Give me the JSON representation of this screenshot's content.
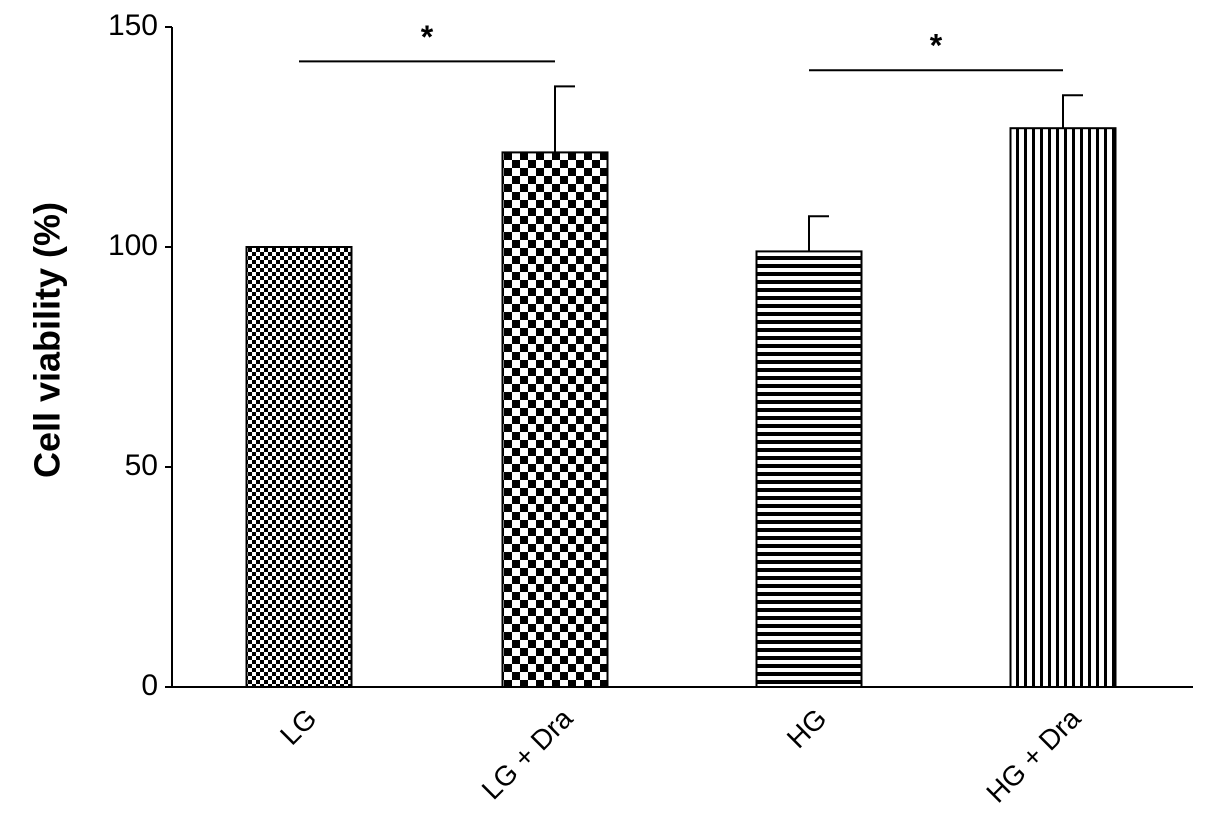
{
  "chart_data": {
    "type": "bar",
    "y_label": "Cell viability (%)",
    "categories": [
      "LG",
      "LG + Dra",
      "HG",
      "HG + Dra"
    ],
    "values": [
      100,
      121.5,
      99,
      127
    ],
    "errors": [
      0,
      15,
      8,
      7.5
    ],
    "patterns": [
      "fine-checker",
      "checker",
      "horizontal",
      "vertical"
    ],
    "color": "#000000",
    "ylim": [
      0,
      150
    ],
    "yticks": [
      0,
      50,
      100,
      150
    ],
    "grid": false,
    "annotations": [
      {
        "label": "*",
        "from": 0,
        "to": 1
      },
      {
        "label": "*",
        "from": 2,
        "to": 3
      }
    ]
  }
}
